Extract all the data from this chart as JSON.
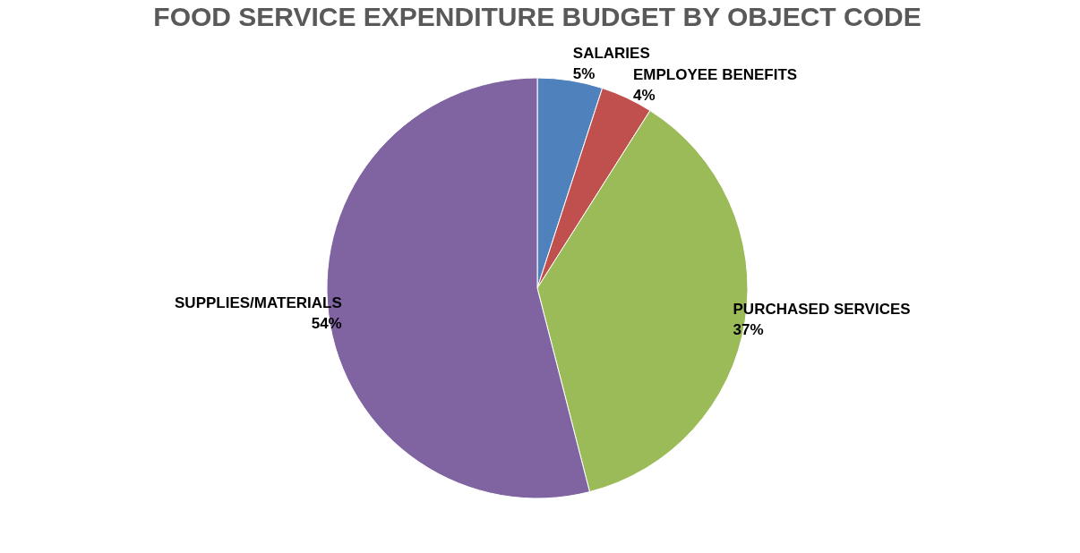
{
  "chart_data": {
    "type": "pie",
    "title": "FOOD SERVICE EXPENDITURE BUDGET BY OBJECT CODE",
    "categories": [
      "SALARIES",
      "EMPLOYEE BENEFITS",
      "PURCHASED SERVICES",
      "SUPPLIES/MATERIALS"
    ],
    "values": [
      5,
      4,
      37,
      54
    ],
    "value_labels": [
      "5%",
      "4%",
      "37%",
      "54%"
    ],
    "colors": [
      "#4f81bd",
      "#c0504d",
      "#9bbb59",
      "#8064a2"
    ],
    "legend": false
  }
}
